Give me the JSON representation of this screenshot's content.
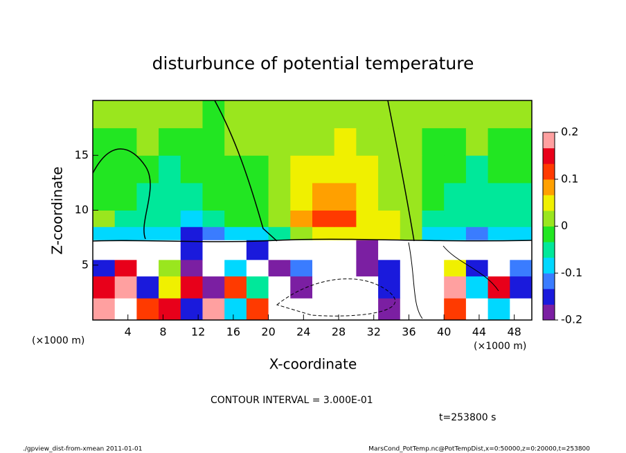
{
  "chart_data": {
    "type": "heatmap",
    "title": "disturbunce of potential temperature",
    "xlabel": "X-coordinate",
    "ylabel": "Z-coordinate",
    "x_unit_left": "(×1000 m)",
    "x_unit_right": "(×1000 m)",
    "contour_note": "CONTOUR INTERVAL = 3.000E-01",
    "time_note": "t=253800 s",
    "footer_left": "./gpview_dist-from-xmean  2011-01-01",
    "footer_right": "MarsCond_PotTemp.nc@PotTempDist,x=0:50000,z=0:20000,t=253800",
    "xlim": [
      0,
      50
    ],
    "ylim": [
      0,
      20
    ],
    "xticks": [
      4,
      8,
      12,
      16,
      20,
      24,
      28,
      32,
      36,
      40,
      44,
      48
    ],
    "yticks": [
      5,
      10,
      15
    ],
    "x_edges": [
      0,
      2.5,
      5,
      7.5,
      10,
      12.5,
      15,
      17.5,
      20,
      22.5,
      25,
      27.5,
      30,
      32.5,
      35,
      37.5,
      40,
      42.5,
      45,
      47.5,
      50
    ],
    "z_edges": [
      0,
      2,
      4,
      5.5,
      7.3,
      8.5,
      10,
      12.5,
      15,
      17.5,
      20
    ],
    "values": [
      [
        0.18,
        0.3,
        0.1,
        0.15,
        -0.15,
        0.2,
        -0.1,
        0.1,
        0.3,
        0.3,
        0.3,
        0.3,
        0.3,
        -0.18,
        0.3,
        0.3,
        0.12,
        0.3,
        -0.1,
        0.3
      ],
      [
        0.15,
        0.2,
        -0.15,
        0.05,
        0.15,
        -0.18,
        0.12,
        -0.05,
        0.3,
        -0.18,
        0.3,
        0.3,
        0.3,
        -0.15,
        0.3,
        0.3,
        0.2,
        -0.1,
        0.15,
        -0.15
      ],
      [
        -0.15,
        0.15,
        0.3,
        0,
        -0.2,
        0.3,
        -0.1,
        0.3,
        -0.18,
        -0.12,
        0.3,
        0.3,
        -0.2,
        -0.15,
        0.3,
        0.3,
        0.05,
        -0.15,
        0.3,
        -0.12
      ],
      [
        0.3,
        0.3,
        0.3,
        0.3,
        -0.15,
        0.3,
        0.3,
        -0.15,
        0.3,
        0.3,
        0.3,
        0.3,
        -0.18,
        0.3,
        0.3,
        0.3,
        0.3,
        0.3,
        0.3,
        0.3
      ],
      [
        -0.08,
        -0.1,
        -0.09,
        -0.1,
        -0.14,
        -0.12,
        -0.1,
        -0.08,
        -0.05,
        0.02,
        0.05,
        0.04,
        0.06,
        0.05,
        0.03,
        -0.08,
        -0.1,
        -0.12,
        -0.1,
        -0.09
      ],
      [
        0.02,
        -0.04,
        -0.05,
        -0.06,
        -0.07,
        -0.05,
        -0.03,
        -0.02,
        0.03,
        0.07,
        0.12,
        0.1,
        0.06,
        0.05,
        0.02,
        -0.04,
        -0.05,
        -0.06,
        -0.05,
        -0.05
      ],
      [
        -0.02,
        -0.03,
        -0.04,
        -0.05,
        -0.04,
        -0.03,
        -0.02,
        -0.01,
        0.03,
        0.06,
        0.08,
        0.08,
        0.05,
        0.02,
        0.01,
        -0.03,
        -0.04,
        -0.05,
        -0.04,
        -0.04
      ],
      [
        -0.02,
        -0.02,
        -0.03,
        -0.04,
        -0.03,
        -0.02,
        -0.01,
        -0.01,
        0.02,
        0.04,
        0.05,
        0.06,
        0.04,
        0.02,
        0,
        -0.02,
        -0.03,
        -0.04,
        -0.03,
        -0.03
      ],
      [
        -0.01,
        -0.01,
        0,
        -0.02,
        -0.02,
        -0.01,
        0,
        0,
        0.01,
        0.03,
        0.03,
        0.04,
        0.03,
        0.02,
        0,
        -0.01,
        -0.01,
        0,
        -0.01,
        -0.02
      ],
      [
        0,
        0,
        0,
        0,
        0,
        -0.01,
        0,
        0,
        0,
        0,
        0.02,
        0.02,
        0.03,
        0.02,
        0,
        0,
        0,
        0,
        0,
        0
      ]
    ],
    "colorbar": {
      "lim": [
        -0.2,
        0.2
      ],
      "ticks": [
        -0.2,
        -0.1,
        0,
        0.1,
        0.2
      ]
    }
  }
}
